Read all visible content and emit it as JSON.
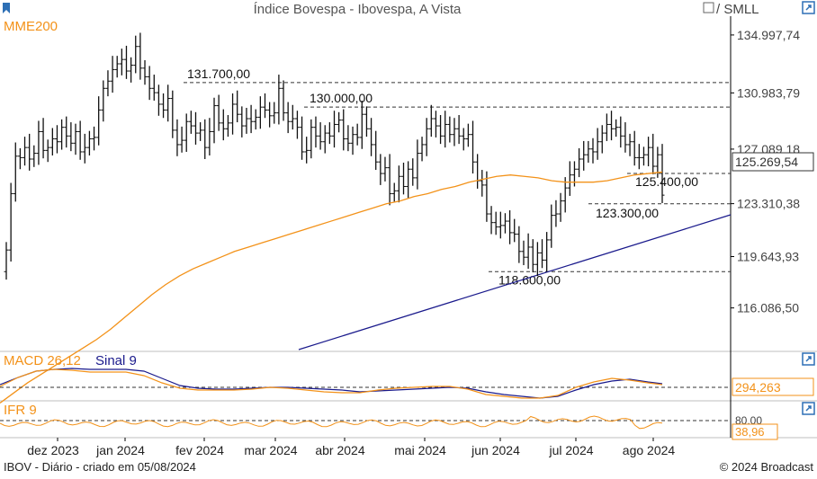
{
  "header": {
    "title": "Índice Bovespa - Ibovespa, A Vista",
    "compare_label": "/ SMLL",
    "main_indicator_label": "MME200"
  },
  "chart_data": [
    {
      "type": "candlestick",
      "title": "Índice Bovespa - Ibovespa, A Vista",
      "overlay_series": [
        {
          "name": "MME200",
          "color": "#f39219"
        }
      ],
      "x_tick_labels": [
        "dez 2023",
        "jan 2024",
        "fev 2024",
        "mar 2024",
        "abr 2024",
        "mai 2024",
        "jun 2024",
        "jul 2024",
        "ago 2024"
      ],
      "y_tick_labels": [
        "134.997,74",
        "130.983,79",
        "127.089,18",
        "123.310,38",
        "119.643,93",
        "116.086,50"
      ],
      "ylim": [
        113200,
        136300
      ],
      "close_bars": [
        120.1,
        124.0,
        126.6,
        126.5,
        127.2,
        126.4,
        126.8,
        128.3,
        127.0,
        127.2,
        127.8,
        127.6,
        128.6,
        128.0,
        127.5,
        128.3,
        126.9,
        127.2,
        127.8,
        127.9,
        129.8,
        131.3,
        131.8,
        132.6,
        133.0,
        133.3,
        132.5,
        132.9,
        134.2,
        132.7,
        132.1,
        131.3,
        131.0,
        130.2,
        129.8,
        130.6,
        128.4,
        127.4,
        127.7,
        129.0,
        128.7,
        128.2,
        128.4,
        127.2,
        128.3,
        130.1,
        128.9,
        128.5,
        128.9,
        130.2,
        129.5,
        128.7,
        129.2,
        129.0,
        129.3,
        130.0,
        129.8,
        129.4,
        129.6,
        131.3,
        129.6,
        129.0,
        129.2,
        128.6,
        126.9,
        127.0,
        128.6,
        128.0,
        127.6,
        128.2,
        128.0,
        128.8,
        129.1,
        127.8,
        127.5,
        128.1,
        127.9,
        129.5,
        128.5,
        127.4,
        126.2,
        125.4,
        125.8,
        124.0,
        124.2,
        125.2,
        124.5,
        125.7,
        125.1,
        126.8,
        127.4,
        128.5,
        129.2,
        128.7,
        128.0,
        128.8,
        128.1,
        128.5,
        128.0,
        127.8,
        128.1,
        126.2,
        124.9,
        124.6,
        122.6,
        122.0,
        121.7,
        121.8,
        122.1,
        121.3,
        121.2,
        120.0,
        119.6,
        120.3,
        119.1,
        119.9,
        119.4,
        120.8,
        122.5,
        122.6,
        123.5,
        124.4,
        125.3,
        125.7,
        126.4,
        126.7,
        127.1,
        126.9,
        127.6,
        128.2,
        128.8,
        128.5,
        128.6,
        128.0,
        127.4,
        127.6,
        126.5,
        126.5,
        126.7,
        127.2,
        125.9,
        126.7,
        123.9
      ],
      "mme200_series": [
        109.5,
        110.2,
        110.9,
        111.5,
        112.1,
        112.7,
        113.3,
        113.9,
        114.6,
        115.4,
        116.2,
        117.0,
        117.7,
        118.3,
        118.8,
        119.2,
        119.6,
        120.0,
        120.3,
        120.6,
        120.9,
        121.2,
        121.5,
        121.8,
        122.1,
        122.4,
        122.7,
        123.0,
        123.3,
        123.5,
        123.8,
        124.0,
        124.3,
        124.5,
        124.8,
        125.0,
        125.2,
        125.3,
        125.2,
        125.1,
        124.9,
        124.8,
        124.8,
        124.8,
        124.9,
        125.1,
        125.3,
        125.4,
        125.5
      ],
      "annotations": [
        {
          "label": "131.700,00",
          "value": 131700
        },
        {
          "label": "130.000,00",
          "value": 130000
        },
        {
          "label": "125.400,00",
          "value": 125400
        },
        {
          "label": "123.300,00",
          "value": 123300
        },
        {
          "label": "118.600,00",
          "value": 118600
        }
      ],
      "last_value_label": "125.269,54",
      "trendline": {
        "from": [
          33,
          113200
        ],
        "to": [
          49,
          121500
        ]
      }
    },
    {
      "type": "line",
      "title": "MACD 26,12  Sinal 9",
      "series": [
        {
          "name": "MACD 26,12",
          "color": "#f39219"
        },
        {
          "name": "Sinal 9",
          "color": "#1a1a8c"
        }
      ],
      "last_value_label": "294,263"
    },
    {
      "type": "line",
      "title": "IFR 9",
      "series": [
        {
          "name": "IFR 9",
          "color": "#f39219"
        }
      ],
      "reference_label": "80,00",
      "last_value_label": "38,96"
    }
  ],
  "panels": {
    "macd": {
      "label_macd": "MACD 26,12",
      "label_signal": "Sinal 9",
      "last_value": "294,263"
    },
    "ifr": {
      "label": "IFR 9",
      "level_80": "80,00",
      "last_value": "38,96"
    }
  },
  "footer": {
    "left": "IBOV - Diário - criado em 05/08/2024",
    "right": "© 2024 Broadcast"
  },
  "colors": {
    "orange": "#f39219",
    "navy": "#1a1a8c",
    "blue_icon": "#2d6fb5",
    "grid_dashed": "#333333"
  },
  "icons": [
    "bookmark-icon",
    "checkbox-icon",
    "export-icon"
  ]
}
